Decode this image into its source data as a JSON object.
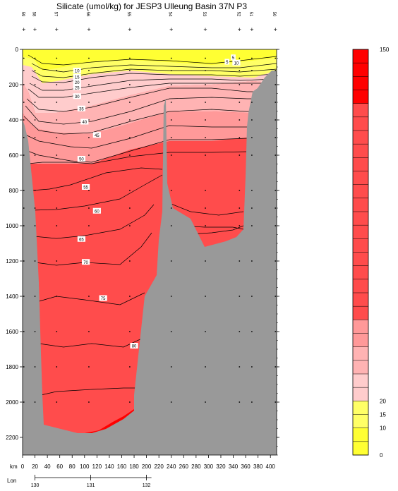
{
  "page": {
    "title": "Silicate (umol/kg) for JESP3 Ulleung Basin 37N P3"
  },
  "chart_data": {
    "type": "contour",
    "title": "Silicate (umol/kg) for JESP3 Ulleung Basin 37N P3",
    "variable": "Silicate",
    "unit": "umol/kg",
    "x_axis": {
      "label": "km",
      "range": [
        0,
        410
      ],
      "ticks": [
        0,
        20,
        40,
        60,
        80,
        100,
        120,
        140,
        160,
        180,
        200,
        220,
        240,
        260,
        280,
        300,
        320,
        340,
        360,
        380,
        400
      ]
    },
    "lon_axis": {
      "label": "Lon",
      "ticks": [
        {
          "km": 20,
          "label": "130"
        },
        {
          "km": 110,
          "label": "131"
        },
        {
          "km": 200,
          "label": "132"
        }
      ]
    },
    "y_axis": {
      "label": "Depth",
      "range": [
        0,
        2300
      ],
      "inverted": true,
      "ticks": [
        0,
        200,
        400,
        600,
        800,
        1000,
        1200,
        1400,
        1600,
        1800,
        2000,
        2200
      ]
    },
    "stations": [
      {
        "km": 2,
        "label": "59"
      },
      {
        "km": 20,
        "label": "58"
      },
      {
        "km": 55,
        "label": "57"
      },
      {
        "km": 107,
        "label": "56"
      },
      {
        "km": 173,
        "label": "55"
      },
      {
        "km": 240,
        "label": "54"
      },
      {
        "km": 295,
        "label": "53"
      },
      {
        "km": 350,
        "label": "52"
      },
      {
        "km": 370,
        "label": "51"
      },
      {
        "km": 408,
        "label": "50"
      }
    ],
    "contour_levels": [
      5,
      10,
      15,
      20,
      25,
      30,
      35,
      40,
      45,
      50,
      55,
      60,
      65,
      70,
      75,
      80
    ],
    "contour_labels": [
      {
        "km": 88,
        "depth": 120,
        "label": "10"
      },
      {
        "km": 88,
        "depth": 155,
        "label": "15"
      },
      {
        "km": 88,
        "depth": 185,
        "label": "20"
      },
      {
        "km": 88,
        "depth": 215,
        "label": "25"
      },
      {
        "km": 88,
        "depth": 265,
        "label": "30"
      },
      {
        "km": 95,
        "depth": 335,
        "label": "35"
      },
      {
        "km": 100,
        "depth": 410,
        "label": "40"
      },
      {
        "km": 120,
        "depth": 485,
        "label": "45"
      },
      {
        "km": 95,
        "depth": 620,
        "label": "50"
      },
      {
        "km": 102,
        "depth": 780,
        "label": "55"
      },
      {
        "km": 120,
        "depth": 915,
        "label": "60"
      },
      {
        "km": 95,
        "depth": 1075,
        "label": "65"
      },
      {
        "km": 102,
        "depth": 1205,
        "label": "70"
      },
      {
        "km": 130,
        "depth": 1410,
        "label": "75"
      },
      {
        "km": 180,
        "depth": 1680,
        "label": "80"
      },
      {
        "km": 330,
        "depth": 70,
        "label": "5"
      },
      {
        "km": 340,
        "depth": 45,
        "label": "5"
      },
      {
        "km": 345,
        "depth": 75,
        "label": "10"
      }
    ],
    "colorbar": {
      "range": [
        0,
        150
      ],
      "labeled_ticks": [
        0,
        10,
        15,
        20,
        150
      ],
      "bands": [
        {
          "from": 0,
          "to": 5,
          "color": "#ffff33"
        },
        {
          "from": 5,
          "to": 10,
          "color": "#ffff33"
        },
        {
          "from": 10,
          "to": 15,
          "color": "#ffff66"
        },
        {
          "from": 15,
          "to": 20,
          "color": "#ffff66"
        },
        {
          "from": 20,
          "to": 25,
          "color": "#ffcccc"
        },
        {
          "from": 25,
          "to": 30,
          "color": "#ffcccc"
        },
        {
          "from": 30,
          "to": 35,
          "color": "#ffb3b3"
        },
        {
          "from": 35,
          "to": 40,
          "color": "#ffb3b3"
        },
        {
          "from": 40,
          "to": 45,
          "color": "#ff9999"
        },
        {
          "from": 45,
          "to": 50,
          "color": "#ff9999"
        },
        {
          "from": 50,
          "to": 150,
          "color": "#ff4c4c"
        },
        {
          "from": 130,
          "to": 150,
          "color": "#ff0000"
        }
      ]
    },
    "colors": {
      "bathymetry": "#999999",
      "contour_line": "#000000"
    }
  }
}
